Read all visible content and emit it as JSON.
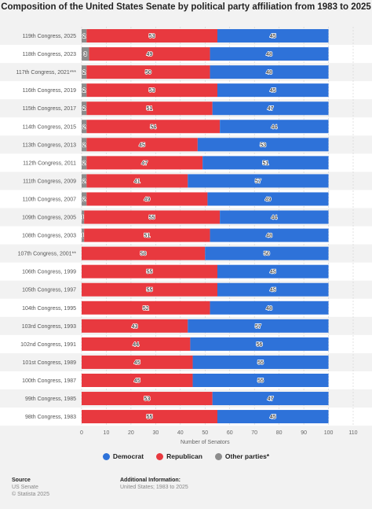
{
  "chart_data": {
    "type": "bar",
    "orientation": "horizontal",
    "stacked": true,
    "title": "Composition of the United States Senate by political party affiliation from 1983 to 2025",
    "xlabel": "Number of Senators",
    "xlim": [
      0,
      110
    ],
    "xticks": [
      "0",
      "10",
      "20",
      "30",
      "40",
      "50",
      "60",
      "70",
      "80",
      "90",
      "100",
      "110"
    ],
    "grid": true,
    "legend_position": "bottom",
    "categories": [
      "119th Congress, 2025",
      "118th Congress, 2023",
      "117th Congress, 2021***",
      "116th Congress, 2019",
      "115th Congress, 2017",
      "114th Congress, 2015",
      "113th Congress, 2013",
      "112th Congress, 2011",
      "111th Congress, 2009",
      "110th Congress, 2007",
      "109th Congress, 2005",
      "108th Congress, 2003",
      "107th Congress, 2001**",
      "106th Congress, 1999",
      "105th Congress, 1997",
      "104th Congress, 1995",
      "103rd Congress, 1993",
      "102nd Congress, 1991",
      "101st Congress, 1989",
      "100th Congress, 1987",
      "99th Congress, 1985",
      "98th Congress, 1983"
    ],
    "series": [
      {
        "name": "Other parties*",
        "color": "#8c8c8c",
        "values": [
          2,
          3,
          2,
          2,
          2,
          2,
          2,
          2,
          2,
          2,
          1,
          1,
          0,
          0,
          0,
          0,
          0,
          0,
          0,
          0,
          0,
          0
        ],
        "labels": [
          "2",
          "3",
          "2",
          "2",
          "2",
          "2",
          "2",
          "2",
          "2",
          "2",
          "1",
          "1",
          "",
          "",
          "",
          "",
          "",
          "",
          "",
          "",
          "",
          ""
        ]
      },
      {
        "name": "Republican",
        "color": "#e8393f",
        "values": [
          53,
          49,
          50,
          53,
          51,
          54,
          45,
          47,
          41,
          49,
          55,
          51,
          50,
          55,
          55,
          52,
          43,
          44,
          45,
          45,
          53,
          55
        ],
        "labels": [
          "53",
          "49",
          "50",
          "53",
          "51",
          "54",
          "45",
          "47",
          "41",
          "49",
          "55",
          "51",
          "50",
          "55",
          "55",
          "52",
          "43",
          "44",
          "45",
          "45",
          "53",
          "55"
        ]
      },
      {
        "name": "Democrat",
        "color": "#2e72d9",
        "values": [
          45,
          48,
          48,
          45,
          47,
          44,
          53,
          51,
          57,
          49,
          44,
          48,
          50,
          45,
          45,
          48,
          57,
          56,
          55,
          55,
          47,
          45
        ],
        "labels": [
          "45",
          "48",
          "48",
          "45",
          "47",
          "44",
          "53",
          "51",
          "57",
          "49",
          "44",
          "48",
          "50",
          "45",
          "45",
          "48",
          "57",
          "56",
          "55",
          "55",
          "47",
          "45"
        ]
      }
    ]
  },
  "legend": [
    {
      "label": "Democrat",
      "color": "#2e72d9"
    },
    {
      "label": "Republican",
      "color": "#e8393f"
    },
    {
      "label": "Other parties*",
      "color": "#8c8c8c"
    }
  ],
  "footer": {
    "source_heading": "Source",
    "source_lines": [
      "US Senate",
      "© Statista 2025"
    ],
    "info_heading": "Additional Information:",
    "info_lines": [
      "United States; 1983 to 2025"
    ]
  }
}
